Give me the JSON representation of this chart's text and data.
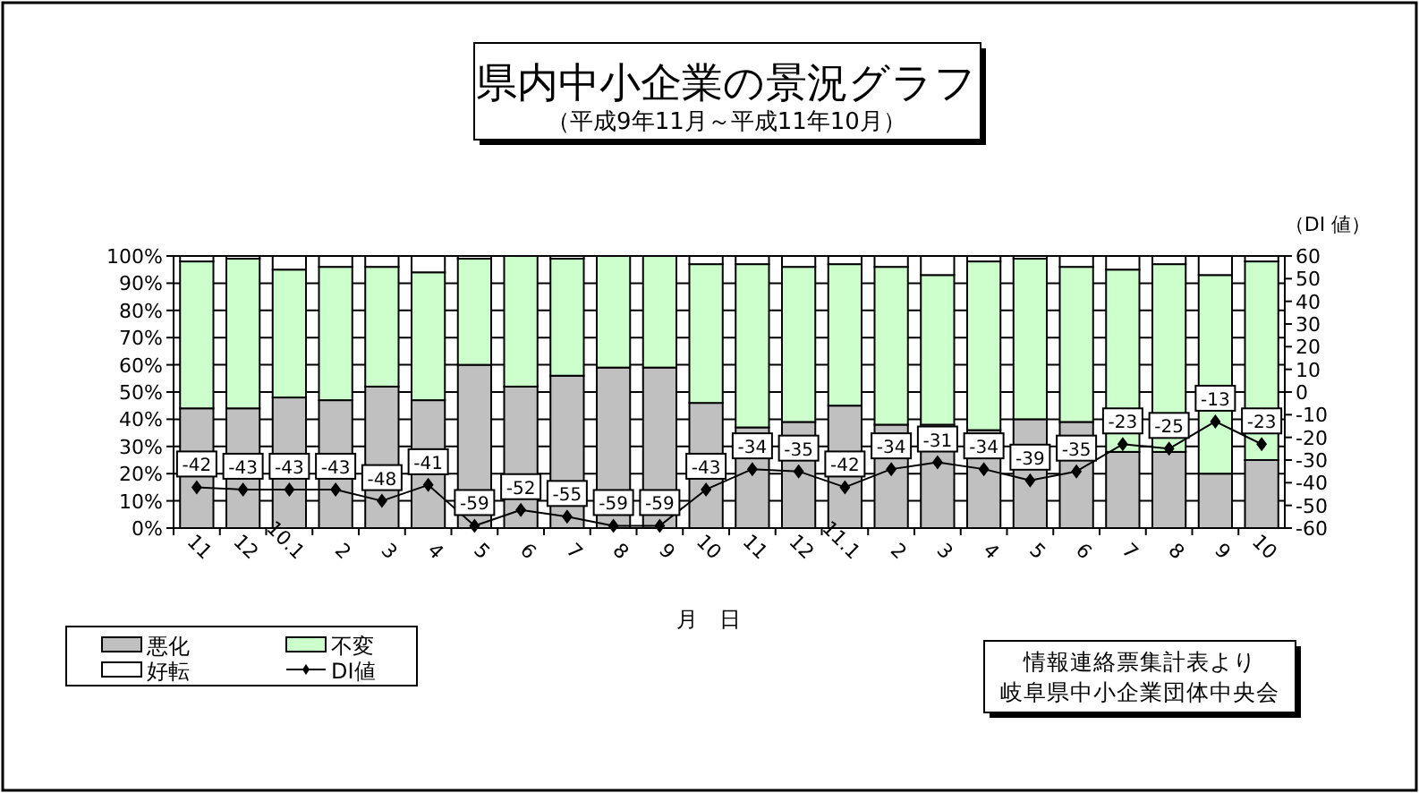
{
  "chart_data": {
    "type": "bar",
    "stacked": true,
    "title": "県内中小企業の景況グラフ",
    "subtitle": "（平成9年11月～平成11年10月）",
    "categories": [
      "11",
      "12",
      "10.1",
      "2",
      "3",
      "4",
      "5",
      "6",
      "7",
      "8",
      "9",
      "10",
      "11",
      "12",
      "11.1",
      "2",
      "3",
      "4",
      "5",
      "6",
      "7",
      "8",
      "9",
      "10"
    ],
    "series": [
      {
        "name": "悪化",
        "color": "#c0c0c0",
        "values": [
          44,
          44,
          48,
          47,
          52,
          47,
          60,
          52,
          56,
          59,
          59,
          46,
          37,
          39,
          45,
          38,
          38,
          36,
          40,
          39,
          28,
          28,
          20,
          25
        ]
      },
      {
        "name": "不変",
        "color": "#ccffcc",
        "values": [
          54,
          55,
          47,
          49,
          44,
          47,
          39,
          48,
          43,
          41,
          41,
          51,
          60,
          57,
          52,
          58,
          55,
          62,
          59,
          57,
          67,
          69,
          73,
          73
        ]
      },
      {
        "name": "好転",
        "color": "#ffffff",
        "values": [
          2,
          1,
          5,
          4,
          4,
          6,
          1,
          0,
          1,
          0,
          0,
          3,
          3,
          4,
          3,
          4,
          7,
          2,
          1,
          4,
          5,
          3,
          7,
          2
        ]
      },
      {
        "name": "DI値",
        "type": "line",
        "axis": "y2",
        "color": "#000000",
        "marker": "diamond",
        "values": [
          -42,
          -43,
          -43,
          -43,
          -48,
          -41,
          -59,
          -52,
          -55,
          -59,
          -59,
          -43,
          -34,
          -35,
          -42,
          -34,
          -31,
          -34,
          -39,
          -35,
          -23,
          -25,
          -13,
          -23
        ],
        "value_labels": [
          "-42",
          "-43",
          "-43",
          "-43",
          "-48",
          "-41",
          "-59",
          "-52",
          "-55",
          "-59",
          "-59",
          "-43",
          "-34",
          "-35",
          "-42",
          "-34",
          "-31",
          "-34",
          "-39",
          "-35",
          "-23",
          "-25",
          "-13",
          "-23"
        ]
      }
    ],
    "ylim": [
      0,
      100
    ],
    "yticks": [
      {
        "value": 0,
        "label": "0%"
      },
      {
        "value": 10,
        "label": "10%"
      },
      {
        "value": 20,
        "label": "20%"
      },
      {
        "value": 30,
        "label": "30%"
      },
      {
        "value": 40,
        "label": "40%"
      },
      {
        "value": 50,
        "label": "50%"
      },
      {
        "value": 60,
        "label": "60%"
      },
      {
        "value": 70,
        "label": "70%"
      },
      {
        "value": 80,
        "label": "80%"
      },
      {
        "value": 90,
        "label": "90%"
      },
      {
        "value": 100,
        "label": "100%"
      }
    ],
    "y2lim": [
      -60,
      60
    ],
    "y2ticks": [
      -60,
      -50,
      -40,
      -30,
      -20,
      -10,
      0,
      10,
      20,
      30,
      40,
      50,
      60
    ],
    "y2label": "（DI 値）",
    "xlabel": "月　日",
    "grid": "y",
    "legend": "bottom left",
    "annotations": [
      "情報連絡票集計表より",
      "岐阜県中小企業団体中央会"
    ]
  }
}
